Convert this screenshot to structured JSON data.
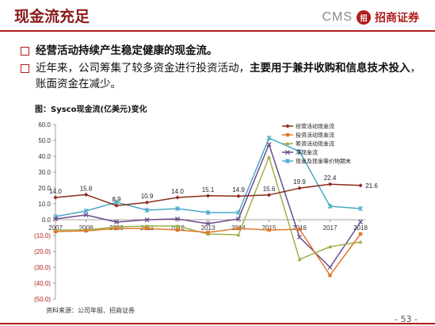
{
  "header": {
    "title": "现金流充足",
    "logo_cms": "CMS",
    "logo_mark": "招",
    "logo_cn": "招商证券"
  },
  "bullets": [
    {
      "plain": "",
      "bold": "经营活动持续产生稳定健康的现金流。",
      "tail": ""
    },
    {
      "plain": "近年来，公司筹集了较多资金进行投资活动，",
      "bold": "主要用于兼并收购和信息技术投入",
      "tail": "，账面资金在减少。"
    }
  ],
  "chart_title": "图：Sysco现金流(亿美元)变化",
  "source": "资料来源：公司年报、招商证券",
  "page_number": "- 53 -",
  "chart_data": {
    "type": "line",
    "x": [
      "2007",
      "2008",
      "2009",
      "2011",
      "2012",
      "2013",
      "2014",
      "2015",
      "2016",
      "2017",
      "2018"
    ],
    "y_ticks": [
      "60.0",
      "50.0",
      "40.0",
      "30.0",
      "20.0",
      "10.0",
      "0.0",
      "(10.0)",
      "(20.0)",
      "(30.0)",
      "(40.0)",
      "(50.0)"
    ],
    "ylim": [
      -50,
      60
    ],
    "legend_position": "top-right",
    "series": [
      {
        "name": "经营活动现金流",
        "color": "#8b2a1a",
        "marker": "diamond",
        "show_labels": true,
        "values": [
          14.0,
          15.8,
          8.9,
          10.9,
          14.0,
          15.1,
          14.9,
          15.6,
          19.9,
          22.4,
          21.6
        ]
      },
      {
        "name": "投资活动现金流",
        "color": "#e07a2a",
        "marker": "square",
        "show_labels": false,
        "values": [
          -7.5,
          -7.0,
          -5.5,
          -5.5,
          -6.5,
          -8.0,
          -5.5,
          -6.5,
          -6.0,
          -35.0,
          -9.0
        ]
      },
      {
        "name": "筹资活动现金流",
        "color": "#9fb04a",
        "marker": "triangle",
        "show_labels": false,
        "values": [
          -6.5,
          -6.5,
          -4.5,
          -4.0,
          -4.0,
          -9.0,
          -9.5,
          39.5,
          -25.0,
          -17.0,
          -14.0
        ]
      },
      {
        "name": "净现金流",
        "color": "#6a4a8a",
        "marker": "x",
        "show_labels": false,
        "values": [
          0.5,
          3.0,
          -1.5,
          0.0,
          0.5,
          -2.5,
          0.5,
          47.5,
          -11.0,
          -30.0,
          -1.5
        ]
      },
      {
        "name": "现金及现金等价物期末",
        "color": "#4aa8c8",
        "marker": "star",
        "show_labels": false,
        "values": [
          2.0,
          5.5,
          11.0,
          6.0,
          7.0,
          4.5,
          4.5,
          51.5,
          43.0,
          8.5,
          7.0
        ]
      }
    ]
  }
}
